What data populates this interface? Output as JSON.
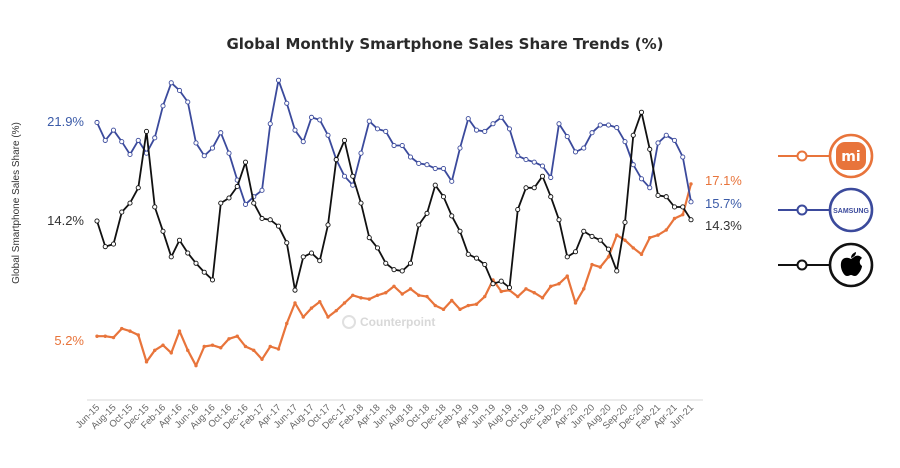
{
  "chart_data": {
    "type": "line",
    "title": "Global Monthly Smartphone Sales Share Trends (%)",
    "ylabel": "Global Smartphone Sales Share (%)",
    "xlabel": "",
    "ylim": [
      0,
      26
    ],
    "grid": false,
    "legend_placement": "right",
    "watermark": "Counterpoint",
    "x_ticks": [
      "Jun-15",
      "Aug-15",
      "Oct-15",
      "Dec-15",
      "Feb-16",
      "Apr-16",
      "Jun-16",
      "Aug-16",
      "Oct-16",
      "Dec-16",
      "Feb-17",
      "Apr-17",
      "Jun-17",
      "Aug-17",
      "Oct-17",
      "Dec-17",
      "Feb-18",
      "Apr-18",
      "Jun-18",
      "Aug-18",
      "Oct-18",
      "Dec-18",
      "Feb-19",
      "Apr-19",
      "Jun-19",
      "Aug-19",
      "Oct-19",
      "Dec-19",
      "Feb-20",
      "Apr-20",
      "Jun-20",
      "Aug-20",
      "Sep-20",
      "Dec-20",
      "Feb-21",
      "Apr-21",
      "Jun-21"
    ],
    "x_range": [
      "Jun-15",
      "Jun-21"
    ],
    "x_interval": "monthly",
    "series": [
      {
        "legend_logo": "SAMSUNG",
        "color": "#3b4a9c",
        "start_label": "21.9%",
        "end_label": "15.7%",
        "values": [
          21.9,
          20.5,
          21.3,
          20.4,
          19.4,
          20.5,
          19.5,
          20.7,
          23.2,
          25.0,
          24.4,
          23.5,
          20.3,
          19.3,
          19.9,
          21.1,
          19.5,
          17.4,
          15.5,
          16.1,
          16.6,
          21.8,
          25.2,
          23.4,
          21.3,
          20.4,
          22.3,
          22.1,
          20.9,
          19.0,
          17.7,
          17.0,
          19.5,
          22.0,
          21.4,
          21.2,
          20.1,
          20.1,
          19.2,
          18.7,
          18.6,
          18.3,
          18.3,
          17.3,
          19.9,
          22.2,
          21.3,
          21.2,
          21.8,
          22.3,
          21.4,
          19.3,
          19.0,
          18.8,
          18.5,
          17.6,
          21.8,
          20.8,
          19.6,
          19.9,
          21.1,
          21.7,
          21.7,
          21.5,
          20.4,
          18.6,
          17.5,
          16.8,
          20.3,
          20.9,
          20.5,
          19.2,
          15.7
        ]
      },
      {
        "legend_logo": "apple-icon",
        "color": "#111111",
        "start_label": "14.2%",
        "end_label": "14.3%",
        "values": [
          14.2,
          12.2,
          12.4,
          14.9,
          15.6,
          16.8,
          21.2,
          15.3,
          13.4,
          11.4,
          12.7,
          11.7,
          10.9,
          10.2,
          9.6,
          15.6,
          16.0,
          16.9,
          18.8,
          15.6,
          14.4,
          14.3,
          13.8,
          12.5,
          8.8,
          11.4,
          11.7,
          11.1,
          13.9,
          19.0,
          20.5,
          17.7,
          15.6,
          12.9,
          12.1,
          10.9,
          10.4,
          10.3,
          10.9,
          13.9,
          14.8,
          17.0,
          16.1,
          14.6,
          13.4,
          11.6,
          11.3,
          10.8,
          9.3,
          9.5,
          9.0,
          15.1,
          16.8,
          16.8,
          17.7,
          16.1,
          14.3,
          11.4,
          11.8,
          13.4,
          13.0,
          12.7,
          12.0,
          10.3,
          14.1,
          20.9,
          22.7,
          19.8,
          16.2,
          16.1,
          15.3,
          15.3,
          14.3
        ]
      },
      {
        "legend_logo": "mi",
        "color": "#e8743b",
        "start_label": "5.2%",
        "end_label": "17.1%",
        "values": [
          5.2,
          5.2,
          5.1,
          5.8,
          5.6,
          5.3,
          3.2,
          4.1,
          4.5,
          3.9,
          5.6,
          4.1,
          2.9,
          4.4,
          4.5,
          4.3,
          5.0,
          5.2,
          4.4,
          4.1,
          3.4,
          4.4,
          4.2,
          6.2,
          7.8,
          6.7,
          7.4,
          7.9,
          6.7,
          7.2,
          7.8,
          8.4,
          8.2,
          8.1,
          8.4,
          8.6,
          9.1,
          8.5,
          8.9,
          8.4,
          8.3,
          7.6,
          7.3,
          8.0,
          7.3,
          7.6,
          7.7,
          8.3,
          9.6,
          8.7,
          8.8,
          8.3,
          8.9,
          8.6,
          8.2,
          9.1,
          9.3,
          9.9,
          7.8,
          8.9,
          10.8,
          10.6,
          11.4,
          13.1,
          12.7,
          12.1,
          11.6,
          12.9,
          13.1,
          13.5,
          14.4,
          14.7,
          17.1
        ]
      }
    ],
    "start_label_colors": {
      "samsung": "#3b5ba8",
      "apple": "#333333",
      "xiaomi": "#e8743b"
    }
  }
}
